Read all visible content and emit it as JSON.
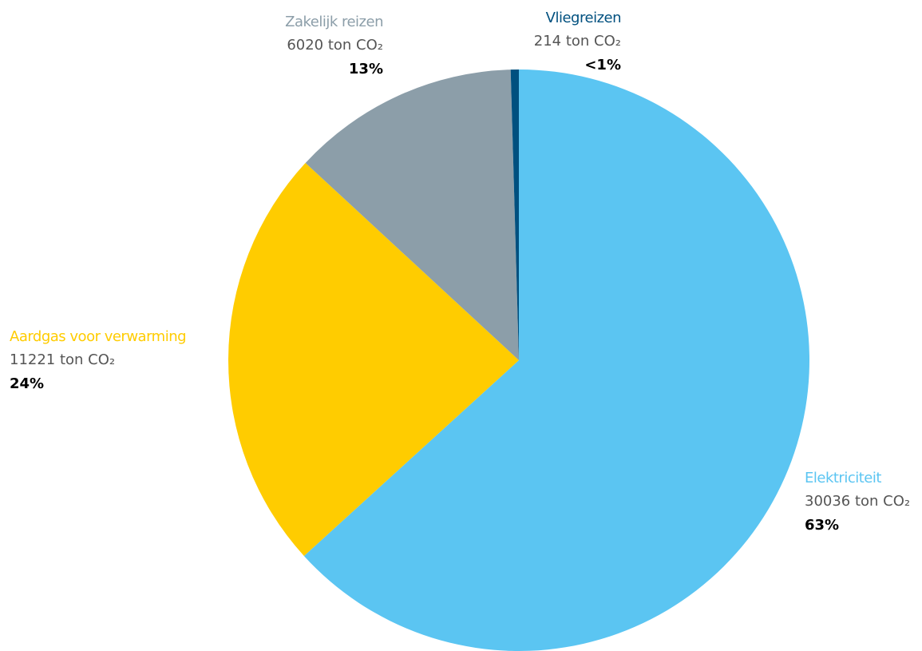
{
  "chart_data": {
    "type": "pie",
    "categories": [
      "Elektriciteit",
      "Aardgas voor verwarming",
      "Zakelijk reizen",
      "Vliegreizen"
    ],
    "values": [
      30036,
      11221,
      6020,
      214
    ],
    "value_labels": [
      "30036 ton CO₂",
      "11221 ton CO₂",
      "6020 ton CO₂",
      "214 ton CO₂"
    ],
    "percent_labels": [
      "63%",
      "24%",
      "13%",
      "<1%"
    ],
    "colors": [
      "#5bc5f2",
      "#ffcc00",
      "#8c9ea9",
      "#00507f"
    ]
  }
}
